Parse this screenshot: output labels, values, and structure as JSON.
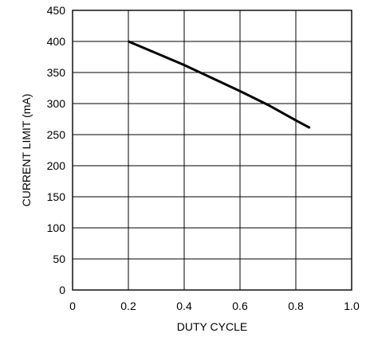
{
  "chart_data": {
    "type": "line",
    "title": "",
    "xlabel": "DUTY CYCLE",
    "ylabel": "CURRENT LIMIT (mA)",
    "xlim": [
      0,
      1.0
    ],
    "ylim": [
      0,
      450
    ],
    "x_ticks": [
      0,
      0.2,
      0.4,
      0.6,
      0.8,
      1.0
    ],
    "x_tick_labels": [
      "0",
      "0.2",
      "0.4",
      "0.6",
      "0.8",
      "1.0"
    ],
    "y_ticks": [
      0,
      50,
      100,
      150,
      200,
      250,
      300,
      350,
      400,
      450
    ],
    "y_tick_labels": [
      "0",
      "50",
      "100",
      "150",
      "200",
      "250",
      "300",
      "350",
      "400",
      "450"
    ],
    "grid": true,
    "series": [
      {
        "x": [
          0.2,
          0.3,
          0.4,
          0.5,
          0.6,
          0.7,
          0.8,
          0.85
        ],
        "y": [
          400,
          381,
          362,
          341,
          320,
          298,
          273,
          261
        ]
      }
    ],
    "line_color": "#000000"
  }
}
